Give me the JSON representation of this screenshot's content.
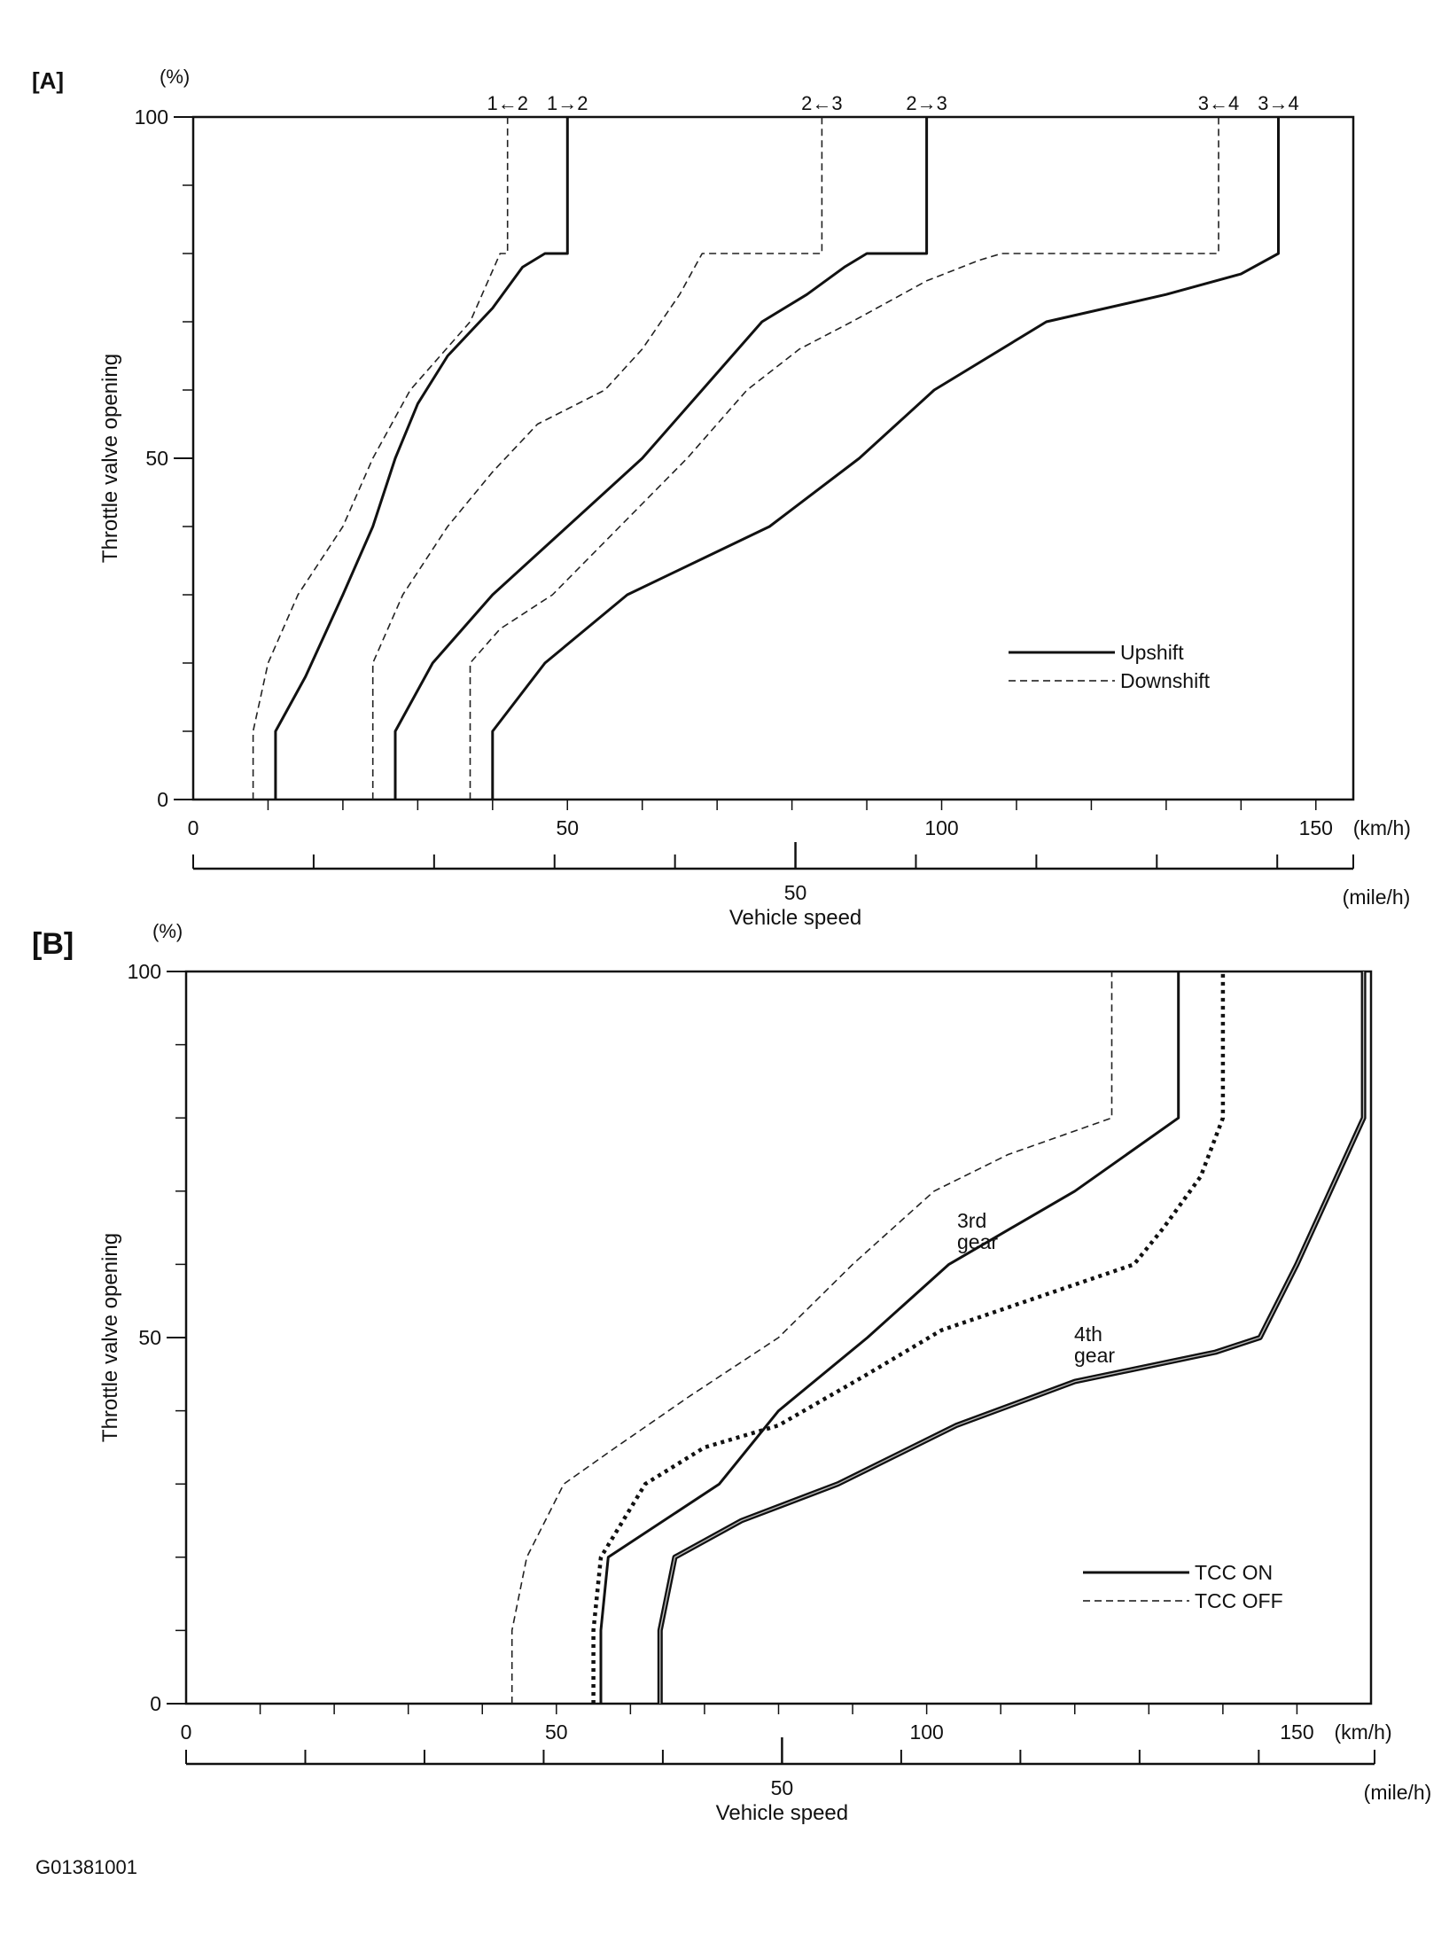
{
  "figure_code": "G01381001",
  "chart_data": [
    {
      "panel_label": "[A]",
      "type": "line",
      "ylabel": "Throttle valve opening",
      "yunit": "(%)",
      "xlabel": "Vehicle speed",
      "xunit_primary": "(km/h)",
      "xunit_secondary": "(mile/h)",
      "xlim": [
        0,
        155
      ],
      "ylim": [
        0,
        100
      ],
      "xticks": [
        0,
        50,
        100,
        150
      ],
      "yticks": [
        0,
        50,
        100
      ],
      "mile_ticks": [
        0,
        50
      ],
      "legend": {
        "position": "bottom-right",
        "entries": [
          {
            "label": "Upshift",
            "style": "solid"
          },
          {
            "label": "Downshift",
            "style": "dashed"
          }
        ]
      },
      "series": [
        {
          "name": "1←2",
          "style": "dashed",
          "x": [
            8,
            8,
            10,
            14,
            20,
            24,
            29,
            33,
            37,
            39,
            41,
            42,
            42,
            42
          ],
          "y": [
            0,
            10,
            20,
            30,
            40,
            50,
            60,
            65,
            70,
            75,
            80,
            80,
            90,
            100
          ]
        },
        {
          "name": "1→2",
          "style": "solid",
          "x": [
            11,
            11,
            15,
            20,
            24,
            27,
            30,
            34,
            40,
            44,
            47,
            50,
            50,
            50
          ],
          "y": [
            0,
            10,
            18,
            30,
            40,
            50,
            58,
            65,
            72,
            78,
            80,
            80,
            90,
            100
          ]
        },
        {
          "name": "2←3",
          "style": "dashed",
          "x": [
            24,
            24,
            28,
            34,
            40,
            46,
            55,
            60,
            65,
            68,
            84,
            84,
            84
          ],
          "y": [
            0,
            20,
            30,
            40,
            48,
            55,
            60,
            66,
            74,
            80,
            80,
            90,
            100
          ]
        },
        {
          "name": "2→3",
          "style": "solid",
          "x": [
            27,
            27,
            32,
            40,
            50,
            60,
            68,
            76,
            82,
            87,
            90,
            98,
            98,
            98
          ],
          "y": [
            0,
            10,
            20,
            30,
            40,
            50,
            60,
            70,
            74,
            78,
            80,
            80,
            90,
            100
          ]
        },
        {
          "name": "3←4",
          "style": "dashed",
          "x": [
            37,
            37,
            41,
            48,
            57,
            66,
            74,
            81,
            88,
            93,
            98,
            105,
            108,
            137,
            137,
            137
          ],
          "y": [
            0,
            20,
            25,
            30,
            40,
            50,
            60,
            66,
            70,
            73,
            76,
            79,
            80,
            80,
            90,
            100
          ]
        },
        {
          "name": "3→4",
          "style": "solid",
          "x": [
            40,
            40,
            47,
            58,
            77,
            89,
            99,
            114,
            130,
            140,
            145,
            145,
            145
          ],
          "y": [
            0,
            10,
            20,
            30,
            40,
            50,
            60,
            70,
            74,
            77,
            80,
            90,
            100
          ]
        }
      ],
      "annotations": [
        "1←2",
        "1→2",
        "2←3",
        "2→3",
        "3←4",
        "3→4"
      ]
    },
    {
      "panel_label": "[B]",
      "type": "line",
      "ylabel": "Throttle valve opening",
      "yunit": "(%)",
      "xlabel": "Vehicle speed",
      "xunit_primary": "(km/h)",
      "xunit_secondary": "(mile/h)",
      "xlim": [
        0,
        160
      ],
      "ylim": [
        0,
        100
      ],
      "xticks": [
        0,
        50,
        100,
        150
      ],
      "yticks": [
        0,
        50,
        100
      ],
      "mile_ticks": [
        0,
        50
      ],
      "legend": {
        "position": "bottom-right",
        "entries": [
          {
            "label": "TCC ON",
            "style": "solid"
          },
          {
            "label": "TCC OFF",
            "style": "dashed"
          }
        ]
      },
      "series": [
        {
          "group": "3rd",
          "style": "dashed",
          "x": [
            44,
            44,
            46,
            51,
            58,
            68,
            80,
            90,
            101,
            111,
            125,
            125,
            125
          ],
          "y": [
            0,
            10,
            20,
            30,
            35,
            42,
            50,
            60,
            70,
            75,
            80,
            90,
            100
          ]
        },
        {
          "group": "3rd",
          "style": "solid",
          "x": [
            56,
            56,
            57,
            72,
            80,
            92,
            103,
            120,
            134,
            134,
            134
          ],
          "y": [
            0,
            10,
            20,
            30,
            40,
            50,
            60,
            70,
            80,
            90,
            100
          ]
        },
        {
          "group": "4th",
          "style": "dotted",
          "x": [
            55,
            55,
            56,
            62,
            70,
            80,
            92,
            102,
            128,
            132,
            137,
            140,
            140
          ],
          "y": [
            0,
            10,
            20,
            30,
            35,
            38,
            45,
            51,
            60,
            65,
            72,
            80,
            100
          ]
        },
        {
          "group": "4th",
          "style": "double",
          "x": [
            64,
            64,
            66,
            75,
            88,
            104,
            120,
            139,
            145,
            150,
            159,
            159
          ],
          "y": [
            0,
            10,
            20,
            25,
            30,
            38,
            44,
            48,
            50,
            60,
            80,
            100
          ]
        }
      ],
      "annotations": [
        {
          "lines": [
            "3rd",
            "gear"
          ]
        },
        {
          "lines": [
            "4th",
            "gear"
          ]
        }
      ]
    }
  ]
}
